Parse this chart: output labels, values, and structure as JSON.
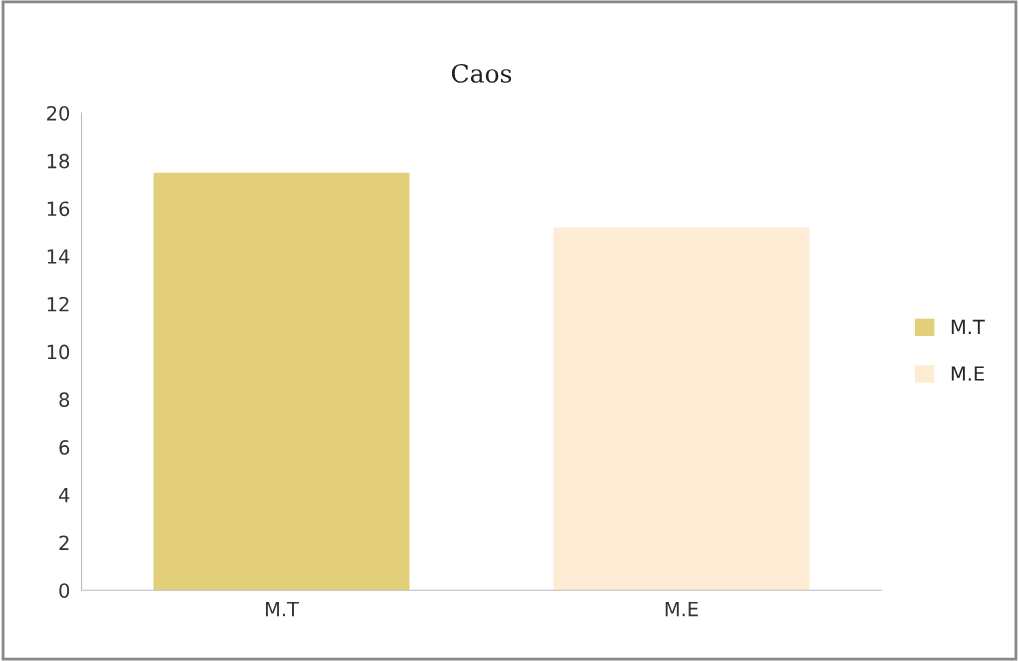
{
  "chart_data": {
    "type": "bar",
    "title": "Caos",
    "categories": [
      "M.T",
      "M.E"
    ],
    "series": [
      {
        "name": "M.T",
        "color": "#e3cf7a",
        "values": [
          17.5,
          null
        ]
      },
      {
        "name": "M.E",
        "color": "#fdebd3",
        "values": [
          null,
          15.2
        ]
      }
    ],
    "ylim": [
      0,
      20
    ],
    "yticks": [
      0,
      2,
      4,
      6,
      8,
      10,
      12,
      14,
      16,
      18,
      20
    ],
    "grid": false,
    "legend": "right"
  }
}
